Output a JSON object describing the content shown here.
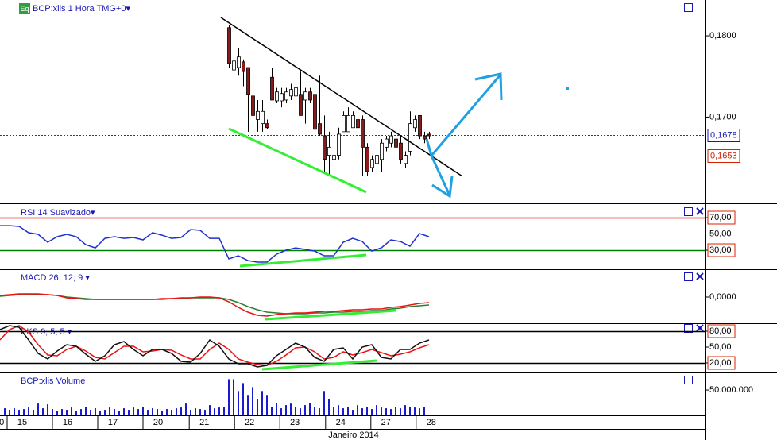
{
  "badge": "Eq",
  "chart_data": [
    {
      "type": "candlestick",
      "title": "BCP:xlis 1 Hora TMG+0▾",
      "xlim": [
        0,
        148
      ],
      "ylim": [
        0.1594,
        0.1844
      ],
      "yticks": [
        {
          "value": 0.18,
          "label": "0,1800"
        },
        {
          "value": 0.17,
          "label": "0,1700"
        }
      ],
      "up_color": "#ffffff",
      "down_color": "#8b1a1a",
      "x": [
        48,
        49,
        50,
        51,
        52,
        53,
        54,
        55,
        56,
        57,
        58,
        59,
        60,
        61,
        62,
        63,
        64,
        65,
        66,
        67,
        68,
        69,
        70,
        71,
        72,
        73,
        74,
        75,
        76,
        77,
        78,
        79,
        80,
        81,
        82,
        83,
        84,
        85,
        86,
        87,
        88,
        89,
        90
      ],
      "open": [
        0.181,
        0.1758,
        0.1761,
        0.1768,
        0.1761,
        0.1726,
        0.1697,
        0.1692,
        0.1692,
        0.1749,
        0.172,
        0.172,
        0.1721,
        0.1726,
        0.1726,
        0.1728,
        0.1721,
        0.1731,
        0.1728,
        0.1692,
        0.1677,
        0.1653,
        0.1648,
        0.1653,
        0.1682,
        0.1682,
        0.1687,
        0.1697,
        0.1697,
        0.1663,
        0.1638,
        0.1643,
        0.1648,
        0.1663,
        0.1668,
        0.1673,
        0.1668,
        0.1643,
        0.1658,
        0.1687,
        0.1702,
        0.1677,
        0.1679
      ],
      "high": [
        0.1813,
        0.1771,
        0.1785,
        0.1771,
        0.1761,
        0.1731,
        0.1721,
        0.1721,
        0.1697,
        0.1761,
        0.1736,
        0.1736,
        0.1736,
        0.1741,
        0.1746,
        0.1756,
        0.1736,
        0.1736,
        0.1746,
        0.1751,
        0.1702,
        0.1682,
        0.1673,
        0.1687,
        0.1707,
        0.1712,
        0.1707,
        0.1707,
        0.1702,
        0.1668,
        0.1653,
        0.1658,
        0.1673,
        0.1677,
        0.1682,
        0.1677,
        0.1677,
        0.1658,
        0.1707,
        0.1702,
        0.1702,
        0.1682,
        0.1682
      ],
      "low": [
        0.1761,
        0.1714,
        0.1751,
        0.1738,
        0.1682,
        0.1687,
        0.1682,
        0.1682,
        0.1685,
        0.1721,
        0.1717,
        0.1712,
        0.1717,
        0.1721,
        0.1721,
        0.1702,
        0.1692,
        0.1717,
        0.1682,
        0.1677,
        0.1633,
        0.1628,
        0.1628,
        0.1648,
        0.1682,
        0.1682,
        0.1687,
        0.1682,
        0.1628,
        0.1628,
        0.1633,
        0.1633,
        0.1633,
        0.1658,
        0.1663,
        0.1653,
        0.1643,
        0.1638,
        0.1653,
        0.1682,
        0.1673,
        0.1668,
        0.1673
      ],
      "close": [
        0.1766,
        0.1769,
        0.1774,
        0.1756,
        0.1728,
        0.1702,
        0.1707,
        0.1707,
        0.1687,
        0.1721,
        0.1731,
        0.1729,
        0.1731,
        0.1734,
        0.1736,
        0.1702,
        0.1731,
        0.1721,
        0.1685,
        0.1679,
        0.1648,
        0.1663,
        0.1653,
        0.1679,
        0.1702,
        0.1702,
        0.1702,
        0.1687,
        0.1663,
        0.1633,
        0.1648,
        0.1653,
        0.1668,
        0.1673,
        0.1677,
        0.1663,
        0.1648,
        0.1653,
        0.1692,
        0.1697,
        0.1677,
        0.1673,
        0.1677
      ],
      "hlines": [
        {
          "value": 0.1678,
          "label": "0,1678",
          "color": "#cc0000",
          "style": "dotted",
          "label_color": "#1818b0"
        },
        {
          "value": 0.1653,
          "label": "0,1653",
          "color": "#cc0000",
          "style": "solid",
          "label_color": "#cc2200"
        }
      ]
    },
    {
      "type": "line",
      "title": "RSI 14 Suavizado▾",
      "xlim": [
        0,
        148
      ],
      "ylim": [
        7.6,
        85.6
      ],
      "yticks": [
        {
          "value": 70,
          "label": "70,00"
        },
        {
          "value": 50,
          "label": "50,00"
        },
        {
          "value": 30,
          "label": "30,00"
        }
      ],
      "hlines": [
        {
          "value": 70,
          "color": "#dd0000"
        },
        {
          "value": 30,
          "color": "#008000"
        }
      ],
      "x": [
        0,
        2,
        4,
        6,
        8,
        10,
        12,
        14,
        16,
        18,
        20,
        22,
        24,
        26,
        28,
        30,
        32,
        34,
        36,
        38,
        40,
        42,
        44,
        46,
        48,
        50,
        52,
        54,
        56,
        58,
        60,
        62,
        64,
        66,
        68,
        70,
        72,
        74,
        76,
        78,
        80,
        82,
        84,
        86,
        88,
        90
      ],
      "series": [
        {
          "color": "#2030d0",
          "values": [
            60.2,
            60.2,
            59.3,
            51.5,
            49.5,
            39.8,
            46.6,
            49.5,
            46.6,
            36.8,
            32.9,
            44.6,
            46.6,
            44.6,
            45.6,
            42.7,
            51.5,
            48.5,
            44.6,
            45.6,
            55.4,
            54.4,
            44.6,
            44.6,
            19.3,
            23.2,
            17.3,
            15.4,
            15.4,
            25.1,
            30.0,
            32.9,
            31.0,
            29.0,
            23.2,
            23.2,
            39.8,
            44.6,
            40.7,
            29.0,
            32.9,
            42.7,
            40.7,
            34.9,
            50.5,
            46.6
          ]
        }
      ]
    },
    {
      "type": "line",
      "title": "MACD 26; 12; 9 ▾",
      "xlim": [
        0,
        148
      ],
      "ylim": [
        -0.0032,
        0.0034
      ],
      "yticks": [
        {
          "value": 0,
          "label": "0,0000"
        }
      ],
      "x": [
        0,
        2,
        4,
        6,
        8,
        10,
        12,
        14,
        16,
        18,
        20,
        22,
        24,
        26,
        28,
        30,
        32,
        34,
        36,
        38,
        40,
        42,
        44,
        46,
        48,
        50,
        52,
        54,
        56,
        58,
        60,
        62,
        64,
        66,
        68,
        70,
        72,
        74,
        76,
        78,
        80,
        82,
        84,
        86,
        88,
        90
      ],
      "series": [
        {
          "color": "#2e7d32",
          "values": [
            0.0001,
            0.0002,
            0.0003,
            0.0003,
            0.0003,
            0.0003,
            0.0002,
            0,
            -0.0001,
            -0.0002,
            -0.0003,
            -0.0003,
            -0.0003,
            -0.0003,
            -0.0003,
            -0.0003,
            -0.0003,
            -0.0003,
            -0.0002,
            -0.0002,
            -0.0001,
            -0.0001,
            -0.0001,
            -0.0001,
            -0.0003,
            -0.0007,
            -0.0012,
            -0.0016,
            -0.0019,
            -0.002,
            -0.0021,
            -0.0021,
            -0.0021,
            -0.002,
            -0.002,
            -0.0019,
            -0.0019,
            -0.0018,
            -0.0018,
            -0.0017,
            -0.0017,
            -0.0015,
            -0.0014,
            -0.0012,
            -0.0011,
            -0.001
          ]
        },
        {
          "color": "#ee1111",
          "values": [
            0.0002,
            0.0003,
            0.0004,
            0.0004,
            0.0004,
            0.0003,
            0.0002,
            -0.0001,
            -0.0002,
            -0.0003,
            -0.0003,
            -0.0003,
            -0.0003,
            -0.0003,
            -0.0003,
            -0.0003,
            -0.0003,
            -0.0002,
            -0.0002,
            -0.0001,
            -0.0001,
            0,
            0,
            -0.0001,
            -0.0006,
            -0.0013,
            -0.0019,
            -0.0023,
            -0.0024,
            -0.0022,
            -0.0021,
            -0.002,
            -0.002,
            -0.0019,
            -0.0018,
            -0.0018,
            -0.0017,
            -0.0016,
            -0.0016,
            -0.0015,
            -0.0015,
            -0.0013,
            -0.0012,
            -0.001,
            -0.0008,
            -0.0007
          ]
        }
      ]
    },
    {
      "type": "line",
      "title": "PKS 9; 5; 5 ▾",
      "xlim": [
        0,
        148
      ],
      "ylim": [
        3.5,
        93.5
      ],
      "yticks": [
        {
          "value": 80,
          "label": "80,00"
        },
        {
          "value": 50,
          "label": "50,00"
        },
        {
          "value": 20,
          "label": "20,00"
        }
      ],
      "hlines": [
        {
          "value": 80,
          "color": "#000000"
        },
        {
          "value": 20,
          "color": "#000000"
        }
      ],
      "x": [
        0,
        2,
        4,
        6,
        8,
        10,
        12,
        14,
        16,
        18,
        20,
        22,
        24,
        26,
        28,
        30,
        32,
        34,
        36,
        38,
        40,
        42,
        44,
        46,
        48,
        50,
        52,
        54,
        56,
        58,
        60,
        62,
        64,
        66,
        68,
        70,
        72,
        74,
        76,
        78,
        80,
        82,
        84,
        86,
        88,
        90
      ],
      "series": [
        {
          "color": "#ee1111",
          "values": [
            63.5,
            83,
            90.5,
            78.5,
            54.5,
            35,
            33.5,
            45.5,
            51.5,
            42.5,
            30.5,
            27.5,
            39.5,
            51.5,
            51.5,
            41,
            42.5,
            45.5,
            44,
            35,
            27.5,
            27.5,
            45.5,
            57.5,
            45.5,
            27.5,
            21.5,
            17,
            15.5,
            23,
            35,
            48.5,
            50,
            41,
            27.5,
            30.5,
            41,
            35,
            39.5,
            45.5,
            39.5,
            33.5,
            36.5,
            41,
            48.5,
            54.5
          ]
        },
        {
          "color": "#111111",
          "values": [
            83,
            90.5,
            87.5,
            63.5,
            38,
            27.5,
            42.5,
            54.5,
            51.5,
            36.5,
            23,
            33.5,
            54.5,
            60.5,
            45.5,
            33.5,
            45.5,
            45.5,
            38,
            23,
            21.5,
            38,
            63.5,
            51.5,
            27.5,
            18.5,
            18.5,
            12.5,
            15.5,
            33.5,
            45.5,
            57.5,
            50,
            30.5,
            23,
            45.5,
            48.5,
            27.5,
            50,
            54.5,
            30.5,
            27.5,
            45.5,
            45.5,
            57.5,
            63.5
          ]
        }
      ]
    },
    {
      "type": "bar",
      "title": "BCP:xlis Volume",
      "color": "#1a1ad0",
      "xlim": [
        0,
        148
      ],
      "ylim": [
        0,
        84000000
      ],
      "yticks": [
        {
          "value": 50000000,
          "label": "50.000.000"
        }
      ],
      "xticks": [
        {
          "value": -2.8,
          "label": "0"
        },
        {
          "value": 1.5,
          "label": "15"
        },
        {
          "value": 11,
          "label": "16"
        },
        {
          "value": 20.5,
          "label": "17"
        },
        {
          "value": 30,
          "label": "20"
        },
        {
          "value": 39.7,
          "label": "21"
        },
        {
          "value": 49.2,
          "label": "22"
        },
        {
          "value": 58.7,
          "label": "23"
        },
        {
          "value": 68.3,
          "label": "24"
        },
        {
          "value": 77.8,
          "label": "27"
        },
        {
          "value": 87.3,
          "label": "28"
        }
      ],
      "xlabel": "Janeiro 2014",
      "x": [
        1,
        2,
        3,
        4,
        5,
        6,
        7,
        8,
        9,
        10,
        11,
        12,
        13,
        14,
        15,
        16,
        17,
        18,
        19,
        20,
        21,
        22,
        23,
        24,
        25,
        26,
        27,
        28,
        29,
        30,
        31,
        32,
        33,
        34,
        35,
        36,
        37,
        38,
        39,
        40,
        41,
        42,
        43,
        44,
        45,
        46,
        47,
        48,
        49,
        50,
        51,
        52,
        53,
        54,
        55,
        56,
        57,
        58,
        59,
        60,
        61,
        62,
        63,
        64,
        65,
        66,
        67,
        68,
        69,
        70,
        71,
        72,
        73,
        74,
        75,
        76,
        77,
        78,
        79,
        80,
        81,
        82,
        83,
        84,
        85,
        86,
        87,
        88,
        89
      ],
      "values": [
        12800000,
        9600000,
        12800000,
        9600000,
        11200000,
        14400000,
        9600000,
        22400000,
        12800000,
        20800000,
        11200000,
        8000000,
        11200000,
        9600000,
        14400000,
        8000000,
        11200000,
        16000000,
        9600000,
        12800000,
        8000000,
        9600000,
        14400000,
        11200000,
        8000000,
        12800000,
        9600000,
        14400000,
        11200000,
        16000000,
        9600000,
        12800000,
        11200000,
        8000000,
        11200000,
        9600000,
        12800000,
        14400000,
        22400000,
        9600000,
        12800000,
        11200000,
        9600000,
        19200000,
        12800000,
        14400000,
        16000000,
        72000000,
        72000000,
        48000000,
        64000000,
        40000000,
        56000000,
        32000000,
        48000000,
        40000000,
        16000000,
        24000000,
        12800000,
        19200000,
        22400000,
        16000000,
        12800000,
        19200000,
        24000000,
        16000000,
        12800000,
        48000000,
        32000000,
        16000000,
        19200000,
        12800000,
        16000000,
        9600000,
        19200000,
        12800000,
        16000000,
        11200000,
        19200000,
        14400000,
        12800000,
        11200000,
        16000000,
        12800000,
        19200000,
        16000000,
        14400000,
        12800000,
        16000000
      ]
    }
  ]
}
